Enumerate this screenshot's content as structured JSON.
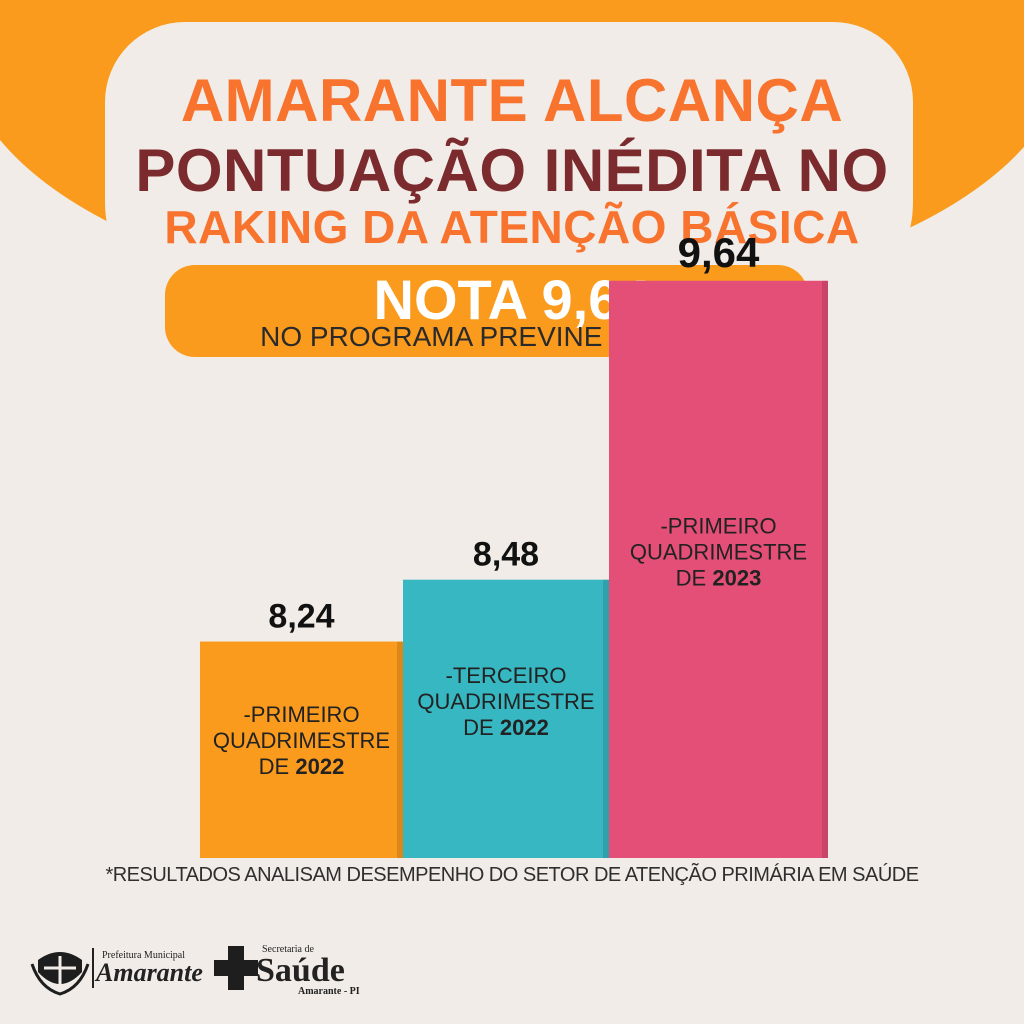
{
  "header": {
    "title_line1": "AMARANTE ALCANÇA",
    "title_line2": "PONTUAÇÃO INÉDITA NO",
    "title_line3": "RAKING DA ATENÇÃO BÁSICA"
  },
  "nota": {
    "main": "NOTA 9,64",
    "sub": "NO PROGRAMA PREVINE BRASIL"
  },
  "colors": {
    "orange": "#fa9b1e",
    "accent_orange": "#f7732e",
    "maroon": "#7b2a2e",
    "teal": "#37b7c2",
    "pink": "#e34f77"
  },
  "chart_data": {
    "type": "bar",
    "categories": [
      {
        "line1": "-PRIMEIRO",
        "line2": "QUADRIMESTRE",
        "line3_prefix": "DE ",
        "year": "2022"
      },
      {
        "line1": "-TERCEIRO",
        "line2": "QUADRIMESTRE",
        "line3_prefix": "DE ",
        "year": "2022"
      },
      {
        "line1": "-PRIMEIRO",
        "line2": "QUADRIMESTRE",
        "line3_prefix": "DE ",
        "year": "2023"
      }
    ],
    "values": [
      8.24,
      8.48,
      9.64
    ],
    "value_labels": [
      "8,24",
      "8,48",
      "9,64"
    ],
    "bar_colors": [
      "#fa9b1e",
      "#37b7c2",
      "#e34f77"
    ],
    "ylim": [
      7.4,
      10
    ],
    "grid": false,
    "title": "",
    "xlabel": "",
    "ylabel": ""
  },
  "footnote": "*RESULTADOS ANALISAM DESEMPENHO DO SETOR DE ATENÇÃO PRIMÁRIA EM SAÚDE",
  "logos": {
    "amarante_small": "Prefeitura Municipal",
    "amarante_name": "Amarante",
    "saude_small": "Secretaria de",
    "saude_name": "Saúde",
    "saude_place": "Amarante - PI"
  }
}
